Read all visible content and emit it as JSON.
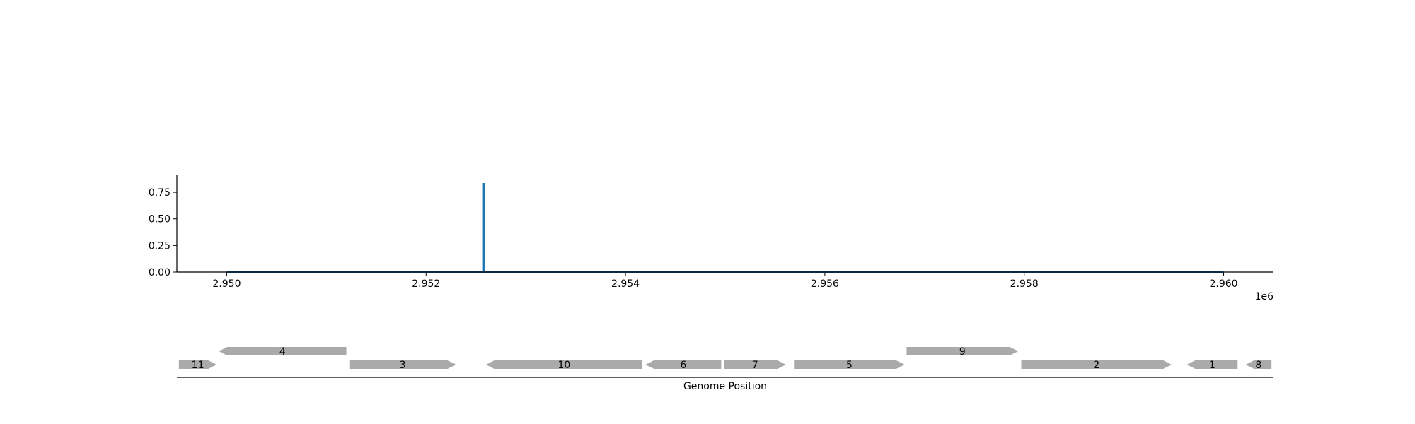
{
  "chart_data": {
    "type": "line",
    "x_axis": {
      "xlim": [
        2949500,
        2960500
      ],
      "ticks": [
        2950000,
        2952000,
        2954000,
        2956000,
        2958000,
        2960000
      ],
      "tick_labels": [
        "2.950",
        "2.952",
        "2.954",
        "2.956",
        "2.958",
        "2.960"
      ],
      "offset_label": "1e6"
    },
    "y_axis": {
      "ylim": [
        0,
        0.91
      ],
      "ticks": [
        0,
        0.25,
        0.5,
        0.75
      ],
      "tick_labels": [
        "0.00",
        "0.25",
        "0.50",
        "0.75"
      ]
    },
    "series": [
      {
        "color": "#1f77b4",
        "x": [
          2950000,
          2952570,
          2952570,
          2952580,
          2952580,
          2960000
        ],
        "y": [
          0,
          0,
          0.83,
          0.83,
          0,
          0
        ]
      }
    ],
    "gene_track": {
      "xlabel": "Genome Position",
      "color": "#aaaaaa",
      "genes": [
        {
          "label": "11",
          "start": 2949520,
          "end": 2949900,
          "strand": 1,
          "row": 0
        },
        {
          "label": "4",
          "start": 2949920,
          "end": 2951200,
          "strand": -1,
          "row": 1
        },
        {
          "label": "3",
          "start": 2951230,
          "end": 2952300,
          "strand": 1,
          "row": 0
        },
        {
          "label": "10",
          "start": 2952600,
          "end": 2954170,
          "strand": -1,
          "row": 0
        },
        {
          "label": "6",
          "start": 2954200,
          "end": 2954960,
          "strand": -1,
          "row": 0
        },
        {
          "label": "7",
          "start": 2954990,
          "end": 2955610,
          "strand": 1,
          "row": 0
        },
        {
          "label": "5",
          "start": 2955690,
          "end": 2956800,
          "strand": 1,
          "row": 0
        },
        {
          "label": "9",
          "start": 2956820,
          "end": 2957940,
          "strand": 1,
          "row": 1
        },
        {
          "label": "2",
          "start": 2957970,
          "end": 2959480,
          "strand": 1,
          "row": 0
        },
        {
          "label": "1",
          "start": 2959630,
          "end": 2960140,
          "strand": -1,
          "row": 0
        },
        {
          "label": "8",
          "start": 2960220,
          "end": 2960480,
          "strand": -1,
          "row": 0
        }
      ]
    }
  }
}
